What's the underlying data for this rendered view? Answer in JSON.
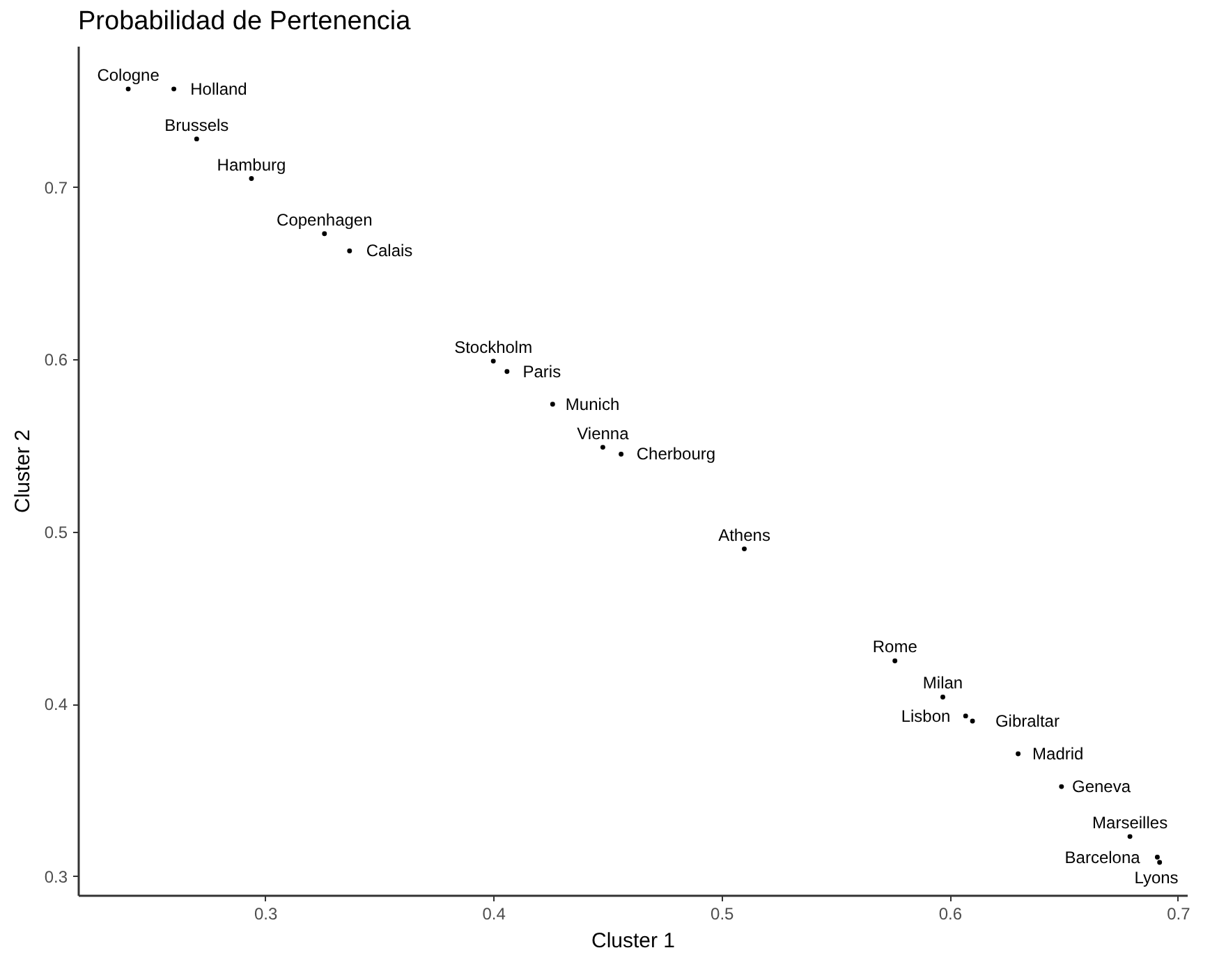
{
  "chart_data": {
    "type": "scatter",
    "title": "Probabilidad de Pertenencia",
    "xlabel": "Cluster 1",
    "ylabel": "Cluster 2",
    "marker": "circle",
    "color": "#000000",
    "grid": false,
    "xlim": [
      0.218,
      0.704
    ],
    "ylim": [
      0.289,
      0.782
    ],
    "xticks": [
      0.3,
      0.4,
      0.5,
      0.6,
      0.7
    ],
    "yticks": [
      0.3,
      0.4,
      0.5,
      0.6,
      0.7
    ],
    "x": [
      0.24,
      0.26,
      0.27,
      0.294,
      0.326,
      0.337,
      0.4,
      0.406,
      0.426,
      0.448,
      0.456,
      0.51,
      0.576,
      0.597,
      0.607,
      0.61,
      0.63,
      0.649,
      0.679,
      0.691,
      0.692
    ],
    "values": [
      0.757,
      0.757,
      0.728,
      0.705,
      0.673,
      0.663,
      0.599,
      0.593,
      0.574,
      0.549,
      0.545,
      0.49,
      0.425,
      0.404,
      0.393,
      0.39,
      0.371,
      0.352,
      0.323,
      0.311,
      0.308
    ],
    "value_labels": [
      "Cologne",
      "Holland",
      "Brussels",
      "Hamburg",
      "Copenhagen",
      "Calais",
      "Stockholm",
      "Paris",
      "Munich",
      "Vienna",
      "Cherbourg",
      "Athens",
      "Rome",
      "Milan",
      "Lisbon",
      "Gibraltar",
      "Madrid",
      "Geneva",
      "Marseilles",
      "Barcelona",
      "Lyons"
    ]
  }
}
